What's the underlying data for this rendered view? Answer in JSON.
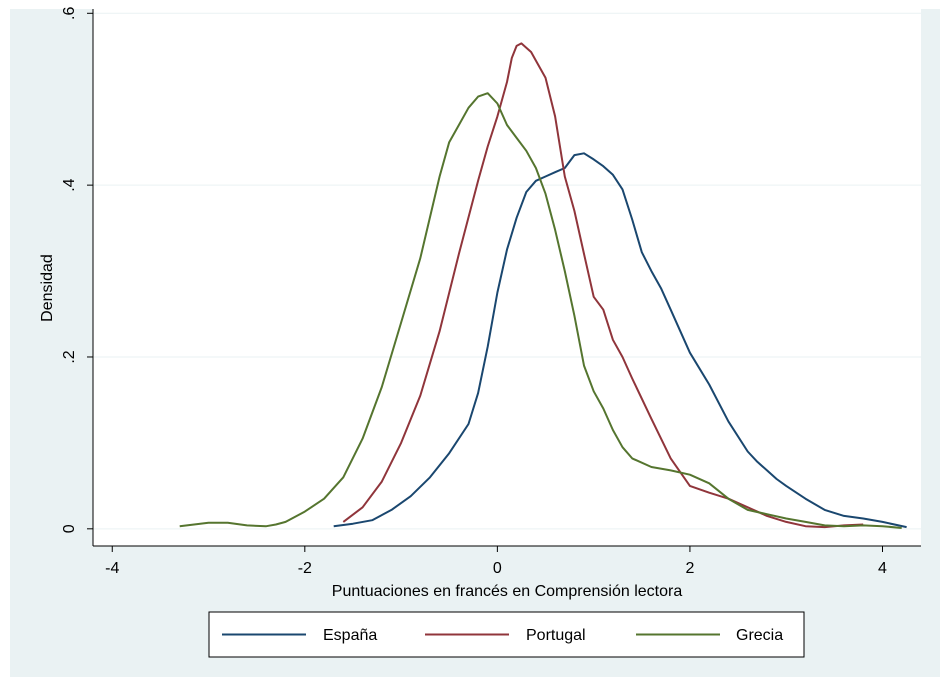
{
  "chart_data": {
    "type": "line",
    "title": "",
    "xlabel": "Puntuaciones en francés en Comprensión lectora",
    "ylabel": "Densidad",
    "xlim": [
      -4.2,
      4.4
    ],
    "ylim": [
      -0.02,
      0.605
    ],
    "x_ticks": [
      -4,
      -2,
      0,
      2,
      4
    ],
    "x_tick_labels": [
      "-4",
      "-2",
      "0",
      "2",
      "4"
    ],
    "y_ticks": [
      0,
      0.2,
      0.4,
      0.6
    ],
    "y_tick_labels": [
      "0",
      ".2",
      ".4",
      ".6"
    ],
    "grid": "horizontal",
    "legend_position": "bottom",
    "background": "#eaf2f3",
    "series": [
      {
        "name": "España",
        "color": "#1a476f",
        "x": [
          -1.7,
          -1.5,
          -1.3,
          -1.1,
          -0.9,
          -0.7,
          -0.5,
          -0.3,
          -0.2,
          -0.1,
          0.0,
          0.1,
          0.2,
          0.3,
          0.4,
          0.5,
          0.6,
          0.7,
          0.8,
          0.9,
          1.0,
          1.1,
          1.2,
          1.3,
          1.4,
          1.5,
          1.6,
          1.7,
          1.8,
          1.9,
          2.0,
          2.2,
          2.4,
          2.6,
          2.7,
          2.8,
          2.9,
          3.0,
          3.2,
          3.4,
          3.6,
          3.8,
          4.0,
          4.25
        ],
        "y": [
          0.003,
          0.006,
          0.01,
          0.022,
          0.038,
          0.06,
          0.088,
          0.122,
          0.158,
          0.212,
          0.275,
          0.325,
          0.362,
          0.392,
          0.405,
          0.41,
          0.415,
          0.42,
          0.435,
          0.437,
          0.43,
          0.422,
          0.412,
          0.395,
          0.36,
          0.322,
          0.3,
          0.28,
          0.255,
          0.23,
          0.205,
          0.168,
          0.125,
          0.09,
          0.078,
          0.068,
          0.058,
          0.05,
          0.035,
          0.022,
          0.015,
          0.012,
          0.008,
          0.002
        ]
      },
      {
        "name": "Portugal",
        "color": "#90353b",
        "x": [
          -1.6,
          -1.4,
          -1.2,
          -1.0,
          -0.8,
          -0.6,
          -0.4,
          -0.2,
          -0.1,
          0.0,
          0.1,
          0.15,
          0.2,
          0.25,
          0.3,
          0.35,
          0.4,
          0.5,
          0.6,
          0.7,
          0.8,
          0.9,
          1.0,
          1.1,
          1.2,
          1.3,
          1.4,
          1.6,
          1.8,
          2.0,
          2.2,
          2.4,
          2.6,
          2.8,
          3.0,
          3.2,
          3.4,
          3.6,
          3.8
        ],
        "y": [
          0.008,
          0.025,
          0.055,
          0.1,
          0.155,
          0.23,
          0.32,
          0.405,
          0.445,
          0.48,
          0.52,
          0.548,
          0.562,
          0.565,
          0.56,
          0.555,
          0.545,
          0.525,
          0.48,
          0.41,
          0.37,
          0.32,
          0.27,
          0.255,
          0.22,
          0.2,
          0.175,
          0.128,
          0.082,
          0.05,
          0.042,
          0.035,
          0.025,
          0.015,
          0.008,
          0.003,
          0.002,
          0.004,
          0.005
        ]
      },
      {
        "name": "Grecia",
        "color": "#55752f",
        "x": [
          -3.3,
          -3.0,
          -2.8,
          -2.6,
          -2.4,
          -2.3,
          -2.2,
          -2.0,
          -1.8,
          -1.6,
          -1.4,
          -1.2,
          -1.0,
          -0.8,
          -0.6,
          -0.5,
          -0.4,
          -0.3,
          -0.2,
          -0.1,
          0.0,
          0.1,
          0.2,
          0.3,
          0.4,
          0.5,
          0.6,
          0.7,
          0.8,
          0.9,
          1.0,
          1.1,
          1.2,
          1.3,
          1.4,
          1.6,
          1.8,
          2.0,
          2.2,
          2.4,
          2.6,
          2.8,
          3.0,
          3.2,
          3.4,
          3.6,
          3.8,
          4.0,
          4.2
        ],
        "y": [
          0.003,
          0.007,
          0.007,
          0.004,
          0.003,
          0.005,
          0.008,
          0.02,
          0.035,
          0.06,
          0.105,
          0.165,
          0.24,
          0.315,
          0.41,
          0.45,
          0.47,
          0.49,
          0.503,
          0.507,
          0.495,
          0.47,
          0.455,
          0.44,
          0.42,
          0.39,
          0.348,
          0.3,
          0.248,
          0.19,
          0.16,
          0.14,
          0.115,
          0.095,
          0.082,
          0.072,
          0.068,
          0.063,
          0.053,
          0.035,
          0.022,
          0.017,
          0.012,
          0.008,
          0.004,
          0.003,
          0.004,
          0.003,
          0.001
        ]
      }
    ]
  }
}
